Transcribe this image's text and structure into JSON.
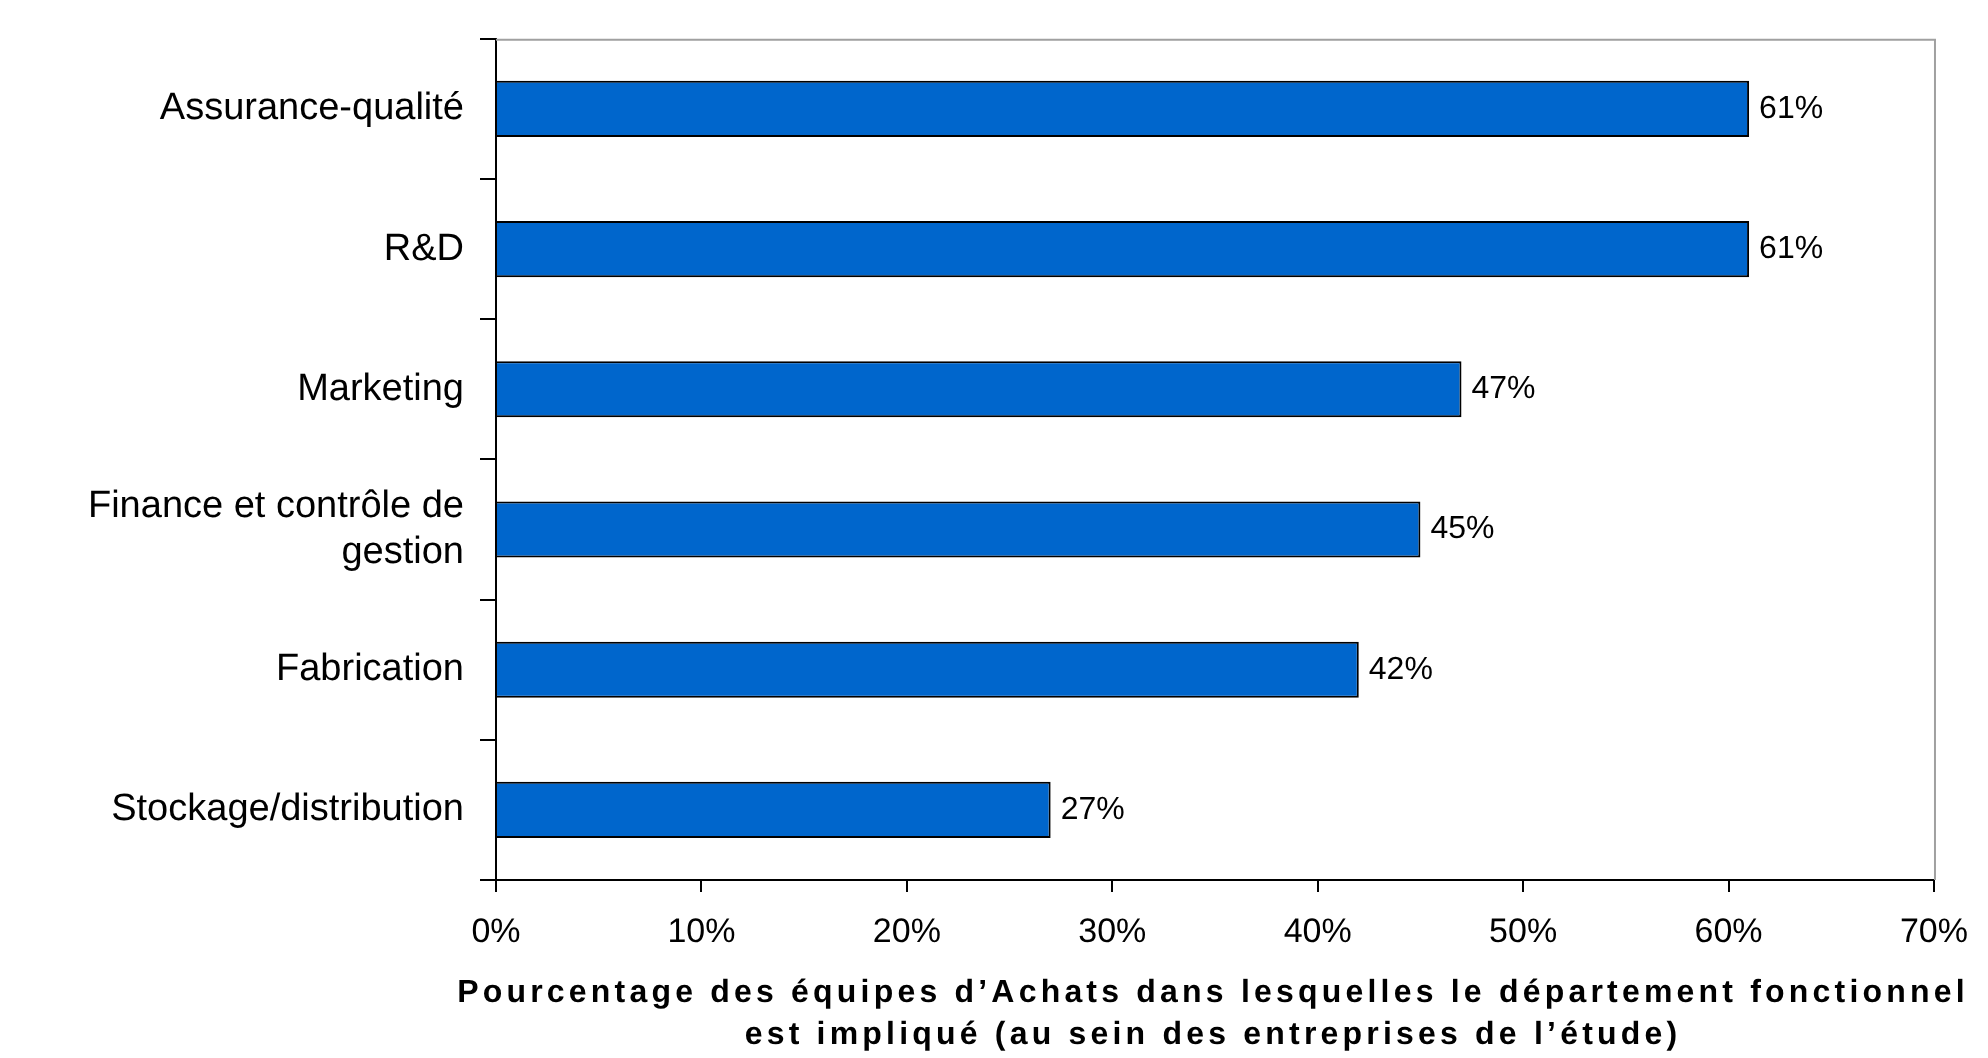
{
  "chart_data": {
    "type": "bar",
    "orientation": "horizontal",
    "categories": [
      "Assurance-qualité",
      "R&D",
      "Marketing",
      "Finance et contrôle de gestion",
      "Fabrication",
      "Stockage/distribution"
    ],
    "values": [
      61,
      61,
      47,
      45,
      42,
      27
    ],
    "color": "#0066cc",
    "value_labels": [
      "61%",
      "61%",
      "47%",
      "45%",
      "42%",
      "27%"
    ],
    "xlabel": "Pourcentage des équipes d’Achats dans lesquelles le département fonctionnel est impliqué (au sein des entreprises de l’étude)",
    "xlim": [
      0,
      70
    ],
    "xticks": [
      {
        "value": 0,
        "label": "0%"
      },
      {
        "value": 10,
        "label": "10%"
      },
      {
        "value": 20,
        "label": "20%"
      },
      {
        "value": 30,
        "label": "30%"
      },
      {
        "value": 40,
        "label": "40%"
      },
      {
        "value": 50,
        "label": "50%"
      },
      {
        "value": 60,
        "label": "60%"
      },
      {
        "value": 70,
        "label": "70%"
      }
    ]
  }
}
